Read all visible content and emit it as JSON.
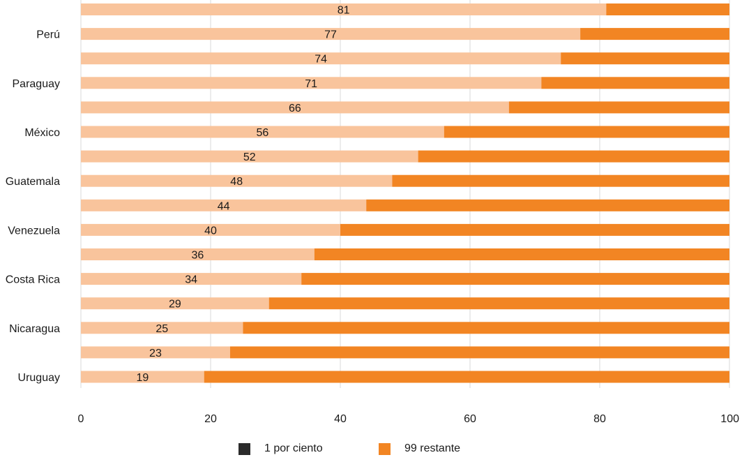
{
  "chart_data": {
    "type": "bar",
    "orientation": "horizontal",
    "stacked": true,
    "categories": [
      "",
      "Perú",
      "",
      "Paraguay",
      "",
      "México",
      "",
      "Guatemala",
      "",
      "Venezuela",
      "",
      "Costa Rica",
      "",
      "Nicaragua",
      "",
      "Uruguay"
    ],
    "series": [
      {
        "name": "1 por ciento",
        "values": [
          81,
          77,
          74,
          71,
          66,
          56,
          52,
          48,
          44,
          40,
          36,
          34,
          29,
          25,
          23,
          19
        ],
        "color": "#f9c49c"
      },
      {
        "name": "99 restante",
        "values": [
          19,
          23,
          26,
          29,
          34,
          44,
          48,
          52,
          56,
          60,
          64,
          66,
          71,
          75,
          77,
          81
        ],
        "color": "#f28523"
      }
    ],
    "data_labels": [
      "81",
      "77",
      "74",
      "71",
      "66",
      "56",
      "52",
      "48",
      "44",
      "40",
      "36",
      "34",
      "29",
      "25",
      "23",
      "19"
    ],
    "xlim": [
      0,
      100
    ],
    "xticks": [
      0,
      20,
      40,
      60,
      80,
      100
    ],
    "xtick_labels": [
      "0",
      "20",
      "40",
      "60",
      "80",
      "100"
    ],
    "grid": true,
    "legend_position": "bottom-center",
    "legend": [
      {
        "label": "1 por ciento",
        "color": "#2b2b2b"
      },
      {
        "label": "99 restante",
        "color": "#f28523"
      }
    ],
    "title": "",
    "xlabel": "",
    "ylabel": ""
  }
}
